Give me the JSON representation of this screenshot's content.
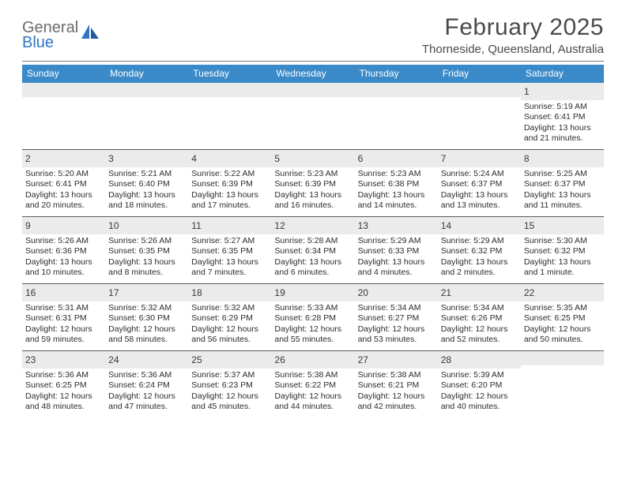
{
  "logo": {
    "text1": "General",
    "text2": "Blue"
  },
  "colors": {
    "header_bar": "#3a8ac9",
    "logo_gray": "#6b6b6b",
    "logo_blue": "#2e75c6",
    "daynum_bg": "#ebebeb",
    "text_dark": "#2c2c2c",
    "rule": "#5b5b5b"
  },
  "title": "February 2025",
  "subtitle": "Thorneside, Queensland, Australia",
  "dow": [
    "Sunday",
    "Monday",
    "Tuesday",
    "Wednesday",
    "Thursday",
    "Friday",
    "Saturday"
  ],
  "weeks": [
    [
      {
        "n": "",
        "sr": "",
        "ss": "",
        "dl": ""
      },
      {
        "n": "",
        "sr": "",
        "ss": "",
        "dl": ""
      },
      {
        "n": "",
        "sr": "",
        "ss": "",
        "dl": ""
      },
      {
        "n": "",
        "sr": "",
        "ss": "",
        "dl": ""
      },
      {
        "n": "",
        "sr": "",
        "ss": "",
        "dl": ""
      },
      {
        "n": "",
        "sr": "",
        "ss": "",
        "dl": ""
      },
      {
        "n": "1",
        "sr": "Sunrise: 5:19 AM",
        "ss": "Sunset: 6:41 PM",
        "dl": "Daylight: 13 hours and 21 minutes."
      }
    ],
    [
      {
        "n": "2",
        "sr": "Sunrise: 5:20 AM",
        "ss": "Sunset: 6:41 PM",
        "dl": "Daylight: 13 hours and 20 minutes."
      },
      {
        "n": "3",
        "sr": "Sunrise: 5:21 AM",
        "ss": "Sunset: 6:40 PM",
        "dl": "Daylight: 13 hours and 18 minutes."
      },
      {
        "n": "4",
        "sr": "Sunrise: 5:22 AM",
        "ss": "Sunset: 6:39 PM",
        "dl": "Daylight: 13 hours and 17 minutes."
      },
      {
        "n": "5",
        "sr": "Sunrise: 5:23 AM",
        "ss": "Sunset: 6:39 PM",
        "dl": "Daylight: 13 hours and 16 minutes."
      },
      {
        "n": "6",
        "sr": "Sunrise: 5:23 AM",
        "ss": "Sunset: 6:38 PM",
        "dl": "Daylight: 13 hours and 14 minutes."
      },
      {
        "n": "7",
        "sr": "Sunrise: 5:24 AM",
        "ss": "Sunset: 6:37 PM",
        "dl": "Daylight: 13 hours and 13 minutes."
      },
      {
        "n": "8",
        "sr": "Sunrise: 5:25 AM",
        "ss": "Sunset: 6:37 PM",
        "dl": "Daylight: 13 hours and 11 minutes."
      }
    ],
    [
      {
        "n": "9",
        "sr": "Sunrise: 5:26 AM",
        "ss": "Sunset: 6:36 PM",
        "dl": "Daylight: 13 hours and 10 minutes."
      },
      {
        "n": "10",
        "sr": "Sunrise: 5:26 AM",
        "ss": "Sunset: 6:35 PM",
        "dl": "Daylight: 13 hours and 8 minutes."
      },
      {
        "n": "11",
        "sr": "Sunrise: 5:27 AM",
        "ss": "Sunset: 6:35 PM",
        "dl": "Daylight: 13 hours and 7 minutes."
      },
      {
        "n": "12",
        "sr": "Sunrise: 5:28 AM",
        "ss": "Sunset: 6:34 PM",
        "dl": "Daylight: 13 hours and 6 minutes."
      },
      {
        "n": "13",
        "sr": "Sunrise: 5:29 AM",
        "ss": "Sunset: 6:33 PM",
        "dl": "Daylight: 13 hours and 4 minutes."
      },
      {
        "n": "14",
        "sr": "Sunrise: 5:29 AM",
        "ss": "Sunset: 6:32 PM",
        "dl": "Daylight: 13 hours and 2 minutes."
      },
      {
        "n": "15",
        "sr": "Sunrise: 5:30 AM",
        "ss": "Sunset: 6:32 PM",
        "dl": "Daylight: 13 hours and 1 minute."
      }
    ],
    [
      {
        "n": "16",
        "sr": "Sunrise: 5:31 AM",
        "ss": "Sunset: 6:31 PM",
        "dl": "Daylight: 12 hours and 59 minutes."
      },
      {
        "n": "17",
        "sr": "Sunrise: 5:32 AM",
        "ss": "Sunset: 6:30 PM",
        "dl": "Daylight: 12 hours and 58 minutes."
      },
      {
        "n": "18",
        "sr": "Sunrise: 5:32 AM",
        "ss": "Sunset: 6:29 PM",
        "dl": "Daylight: 12 hours and 56 minutes."
      },
      {
        "n": "19",
        "sr": "Sunrise: 5:33 AM",
        "ss": "Sunset: 6:28 PM",
        "dl": "Daylight: 12 hours and 55 minutes."
      },
      {
        "n": "20",
        "sr": "Sunrise: 5:34 AM",
        "ss": "Sunset: 6:27 PM",
        "dl": "Daylight: 12 hours and 53 minutes."
      },
      {
        "n": "21",
        "sr": "Sunrise: 5:34 AM",
        "ss": "Sunset: 6:26 PM",
        "dl": "Daylight: 12 hours and 52 minutes."
      },
      {
        "n": "22",
        "sr": "Sunrise: 5:35 AM",
        "ss": "Sunset: 6:25 PM",
        "dl": "Daylight: 12 hours and 50 minutes."
      }
    ],
    [
      {
        "n": "23",
        "sr": "Sunrise: 5:36 AM",
        "ss": "Sunset: 6:25 PM",
        "dl": "Daylight: 12 hours and 48 minutes."
      },
      {
        "n": "24",
        "sr": "Sunrise: 5:36 AM",
        "ss": "Sunset: 6:24 PM",
        "dl": "Daylight: 12 hours and 47 minutes."
      },
      {
        "n": "25",
        "sr": "Sunrise: 5:37 AM",
        "ss": "Sunset: 6:23 PM",
        "dl": "Daylight: 12 hours and 45 minutes."
      },
      {
        "n": "26",
        "sr": "Sunrise: 5:38 AM",
        "ss": "Sunset: 6:22 PM",
        "dl": "Daylight: 12 hours and 44 minutes."
      },
      {
        "n": "27",
        "sr": "Sunrise: 5:38 AM",
        "ss": "Sunset: 6:21 PM",
        "dl": "Daylight: 12 hours and 42 minutes."
      },
      {
        "n": "28",
        "sr": "Sunrise: 5:39 AM",
        "ss": "Sunset: 6:20 PM",
        "dl": "Daylight: 12 hours and 40 minutes."
      },
      {
        "n": "",
        "sr": "",
        "ss": "",
        "dl": ""
      }
    ]
  ]
}
